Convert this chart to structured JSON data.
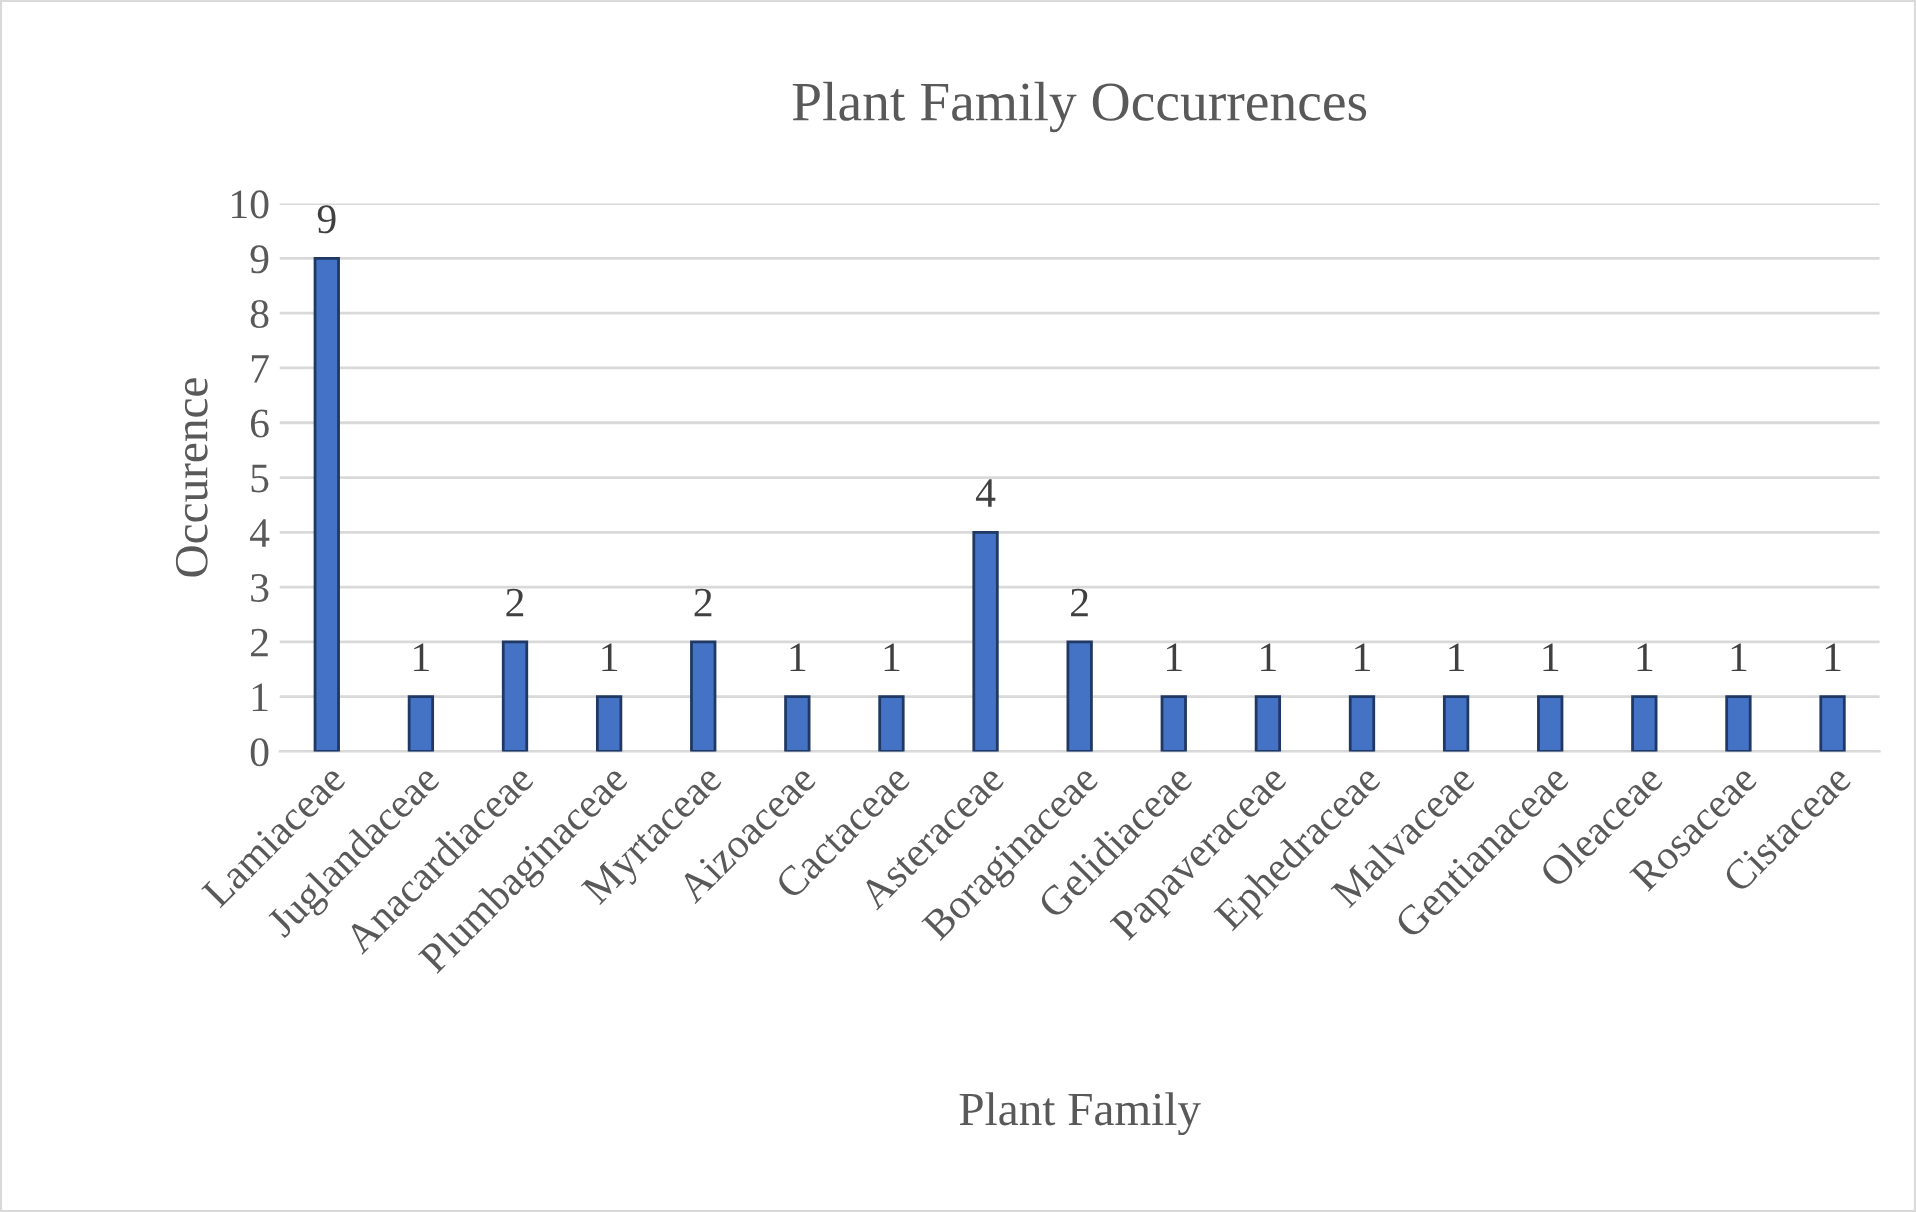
{
  "chart_data": {
    "type": "bar",
    "title": "Plant Family Occurrences",
    "xlabel": "Plant Family",
    "ylabel": "Occurence",
    "categories": [
      "Lamiaceae",
      "Juglandaceae",
      "Anacardiaceae",
      "Plumbaginaceae",
      "Myrtaceae",
      "Aizoaceae",
      "Cactaceae",
      "Asteraceae",
      "Boraginaceae",
      "Gelidiaceae",
      "Papaveraceae",
      "Ephedraceae",
      "Malvaceae",
      "Gentianaceae",
      "Oleaceae",
      "Rosaceae",
      "Cistaceae"
    ],
    "values": [
      9,
      1,
      2,
      1,
      2,
      1,
      1,
      4,
      2,
      1,
      1,
      1,
      1,
      1,
      1,
      1,
      1
    ],
    "color": "#4472c4",
    "ylim": [
      0,
      10
    ],
    "yticks": [
      0,
      1,
      2,
      3,
      4,
      5,
      6,
      7,
      8,
      9,
      10
    ],
    "grid": "y",
    "data_labels": true
  }
}
